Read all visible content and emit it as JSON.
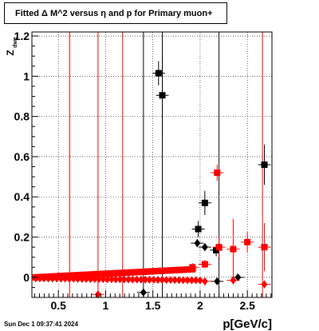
{
  "title": "Fitted Δ M^2 versus η and p for Primary muon+",
  "footer_timestamp": "Sun Dec  1 09:37:41 2024",
  "colors": {
    "black_series": "#000000",
    "red_series": "#ff0000",
    "grid": "#000000",
    "background": "#ffffff"
  },
  "chart_data": {
    "type": "scatter",
    "title": "Fitted Δ M^2 versus η and p for Primary muon+",
    "xlabel": "p[GeV/c]",
    "ylabel": "Z",
    "ylabel_sub": "dwe",
    "xlim": [
      0.22,
      2.76
    ],
    "ylim": [
      -0.1,
      1.22
    ],
    "x_ticks": [
      0.5,
      1,
      1.5,
      2,
      2.5
    ],
    "x_tick_labels": [
      "0.5",
      "1",
      "1.5",
      "2",
      "2.5"
    ],
    "y_ticks": [
      0,
      0.2,
      0.4,
      0.6,
      0.8,
      1,
      1.2
    ],
    "y_tick_labels": [
      "0",
      "0.2",
      "0.4",
      "0.6",
      "0.8",
      "1",
      "1.2"
    ],
    "grid": true,
    "legend": "none",
    "vertical_lines_black": [
      1.4,
      1.6,
      2.2
    ],
    "vertical_lines_red": [
      0.62,
      0.92,
      1.18,
      2.66
    ],
    "series": [
      {
        "marker": "square",
        "color": "#000000",
        "points": [
          {
            "x": 1.56,
            "y": 1.015,
            "yerr": 0.06
          },
          {
            "x": 1.6,
            "y": 0.905,
            "yerr": 0.2
          },
          {
            "x": 1.98,
            "y": 0.24,
            "yerr": 0.04
          },
          {
            "x": 2.05,
            "y": 0.37,
            "yerr": 0.06
          },
          {
            "x": 2.17,
            "y": 0.135,
            "yerr": 0.03
          },
          {
            "x": 2.68,
            "y": 0.56,
            "yerr": 0.1
          }
        ]
      },
      {
        "marker": "diamond",
        "color": "#000000",
        "points": [
          {
            "x": 1.4,
            "y": -0.075,
            "yerr": 0.02
          },
          {
            "x": 1.97,
            "y": 0.17,
            "yerr": 0.02
          },
          {
            "x": 2.05,
            "y": 0.15,
            "yerr": 0.02
          },
          {
            "x": 2.18,
            "y": -0.02,
            "yerr": 0.01
          },
          {
            "x": 2.4,
            "y": 0.0,
            "yerr": 0.01
          }
        ]
      },
      {
        "marker": "square",
        "color": "#ff0000",
        "points": [
          {
            "x": 1.92,
            "y": 0.05,
            "yerr": 0.02
          },
          {
            "x": 2.05,
            "y": 0.065,
            "yerr": 0.02
          },
          {
            "x": 2.18,
            "y": 0.52,
            "yerr": 0.04
          },
          {
            "x": 2.2,
            "y": 0.15,
            "yerr": 0.05
          },
          {
            "x": 2.35,
            "y": 0.14,
            "yerr": 0.15
          },
          {
            "x": 2.5,
            "y": 0.175,
            "yerr": 0.05
          },
          {
            "x": 2.68,
            "y": 0.15,
            "yerr": 0.12
          }
        ]
      },
      {
        "marker": "diamond",
        "color": "#ff0000",
        "points": [
          {
            "x": 0.92,
            "y": -0.085,
            "yerr": 0.02
          },
          {
            "x": 2.05,
            "y": -0.02,
            "yerr": 0.02
          },
          {
            "x": 2.35,
            "y": -0.015,
            "yerr": 0.02
          },
          {
            "x": 2.68,
            "y": -0.035,
            "yerr": 0.02
          }
        ]
      },
      {
        "marker": "square",
        "color": "#ff0000",
        "band": true,
        "x_start": 0.26,
        "x_end": 1.92,
        "count": 52,
        "y_start": 0.0,
        "y_end": 0.04
      },
      {
        "marker": "diamond",
        "color": "#ff0000",
        "band": true,
        "x_start": 0.26,
        "x_end": 2.0,
        "count": 40,
        "y_start": -0.005,
        "y_end": -0.015
      }
    ]
  }
}
